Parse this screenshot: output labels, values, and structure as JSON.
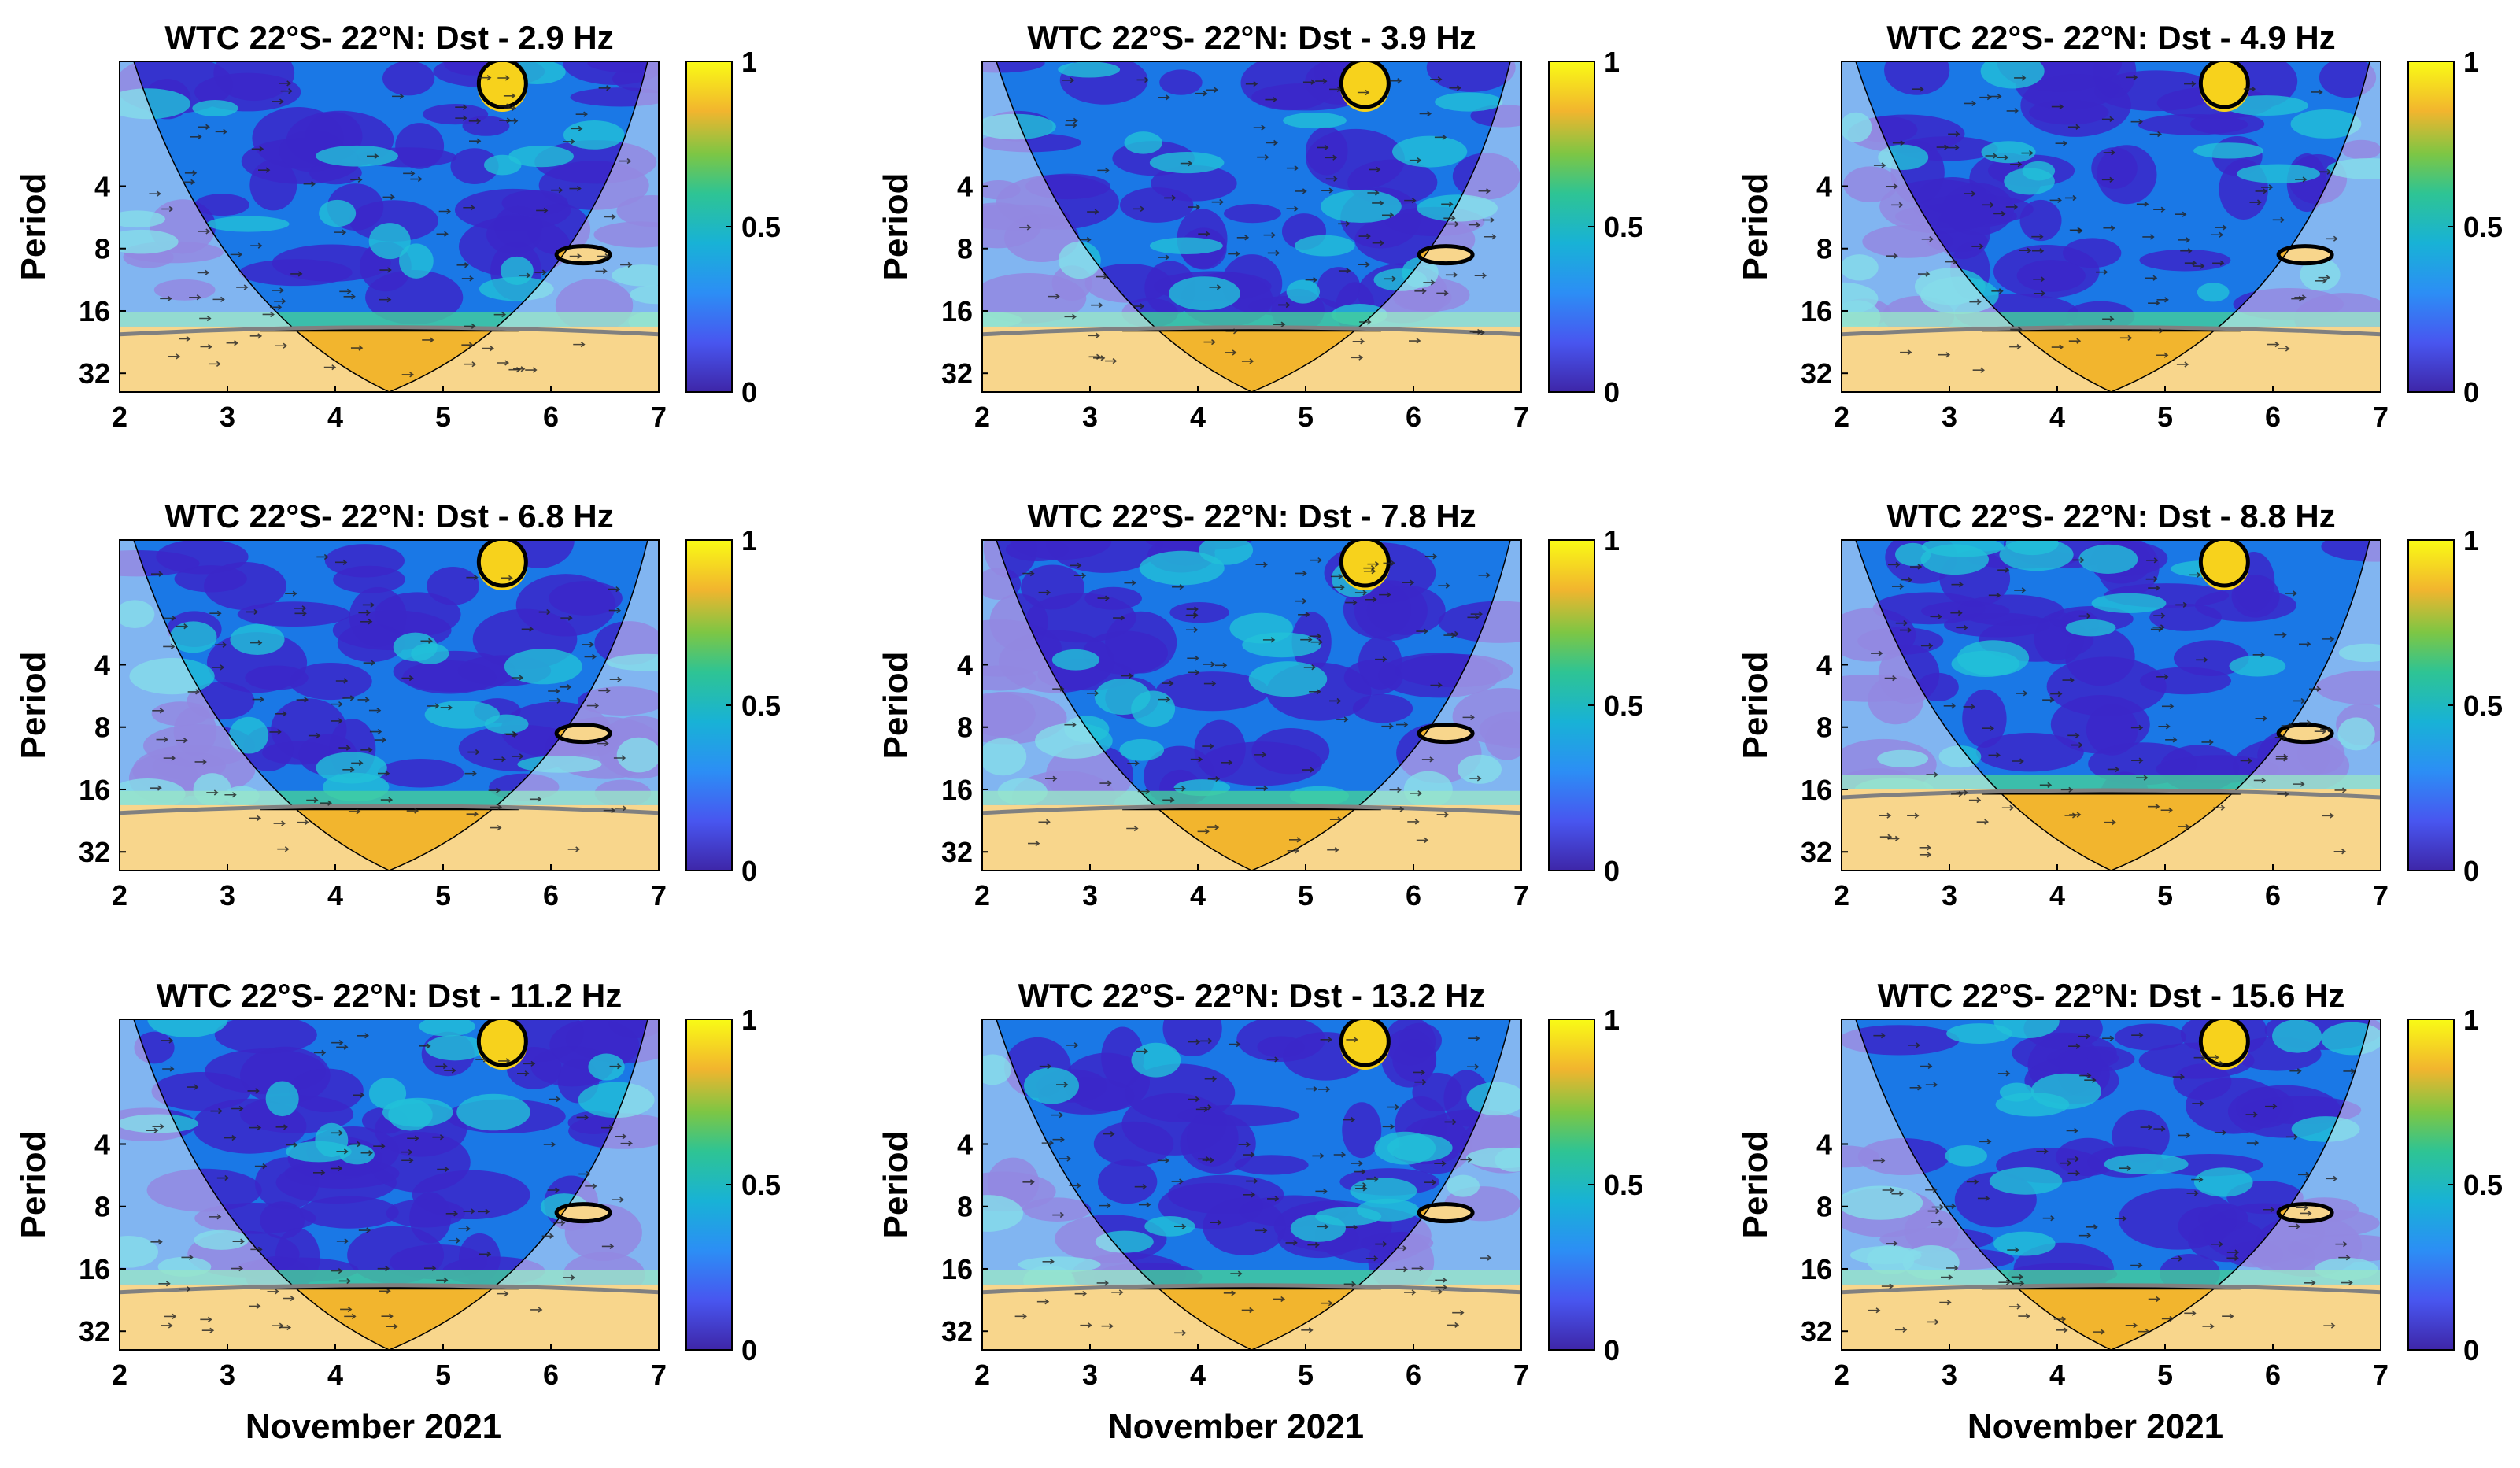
{
  "chart_data": [
    {
      "type": "heatmap",
      "title": "WTC 22°S- 22°N: Dst - 2.9 Hz",
      "ylabel": "Period",
      "xlabel": "",
      "x_ticks": [
        "2",
        "3",
        "4",
        "5",
        "6",
        "7"
      ],
      "y_ticks": [
        "4",
        "8",
        "16",
        "32"
      ],
      "xlim": [
        2,
        7
      ],
      "y_log2_lim": [
        0,
        5.3
      ],
      "colorbar": {
        "ticks": [
          "0",
          "0.5",
          "1"
        ],
        "range": [
          0,
          1
        ]
      }
    },
    {
      "type": "heatmap",
      "title": "WTC 22°S- 22°N: Dst - 3.9 Hz",
      "ylabel": "Period",
      "xlabel": "",
      "x_ticks": [
        "2",
        "3",
        "4",
        "5",
        "6",
        "7"
      ],
      "y_ticks": [
        "4",
        "8",
        "16",
        "32"
      ],
      "xlim": [
        2,
        7
      ],
      "y_log2_lim": [
        0,
        5.3
      ],
      "colorbar": {
        "ticks": [
          "0",
          "0.5",
          "1"
        ],
        "range": [
          0,
          1
        ]
      }
    },
    {
      "type": "heatmap",
      "title": "WTC 22°S- 22°N: Dst - 4.9 Hz",
      "ylabel": "Period",
      "xlabel": "",
      "x_ticks": [
        "2",
        "3",
        "4",
        "5",
        "6",
        "7"
      ],
      "y_ticks": [
        "4",
        "8",
        "16",
        "32"
      ],
      "xlim": [
        2,
        7
      ],
      "y_log2_lim": [
        0,
        5.3
      ],
      "colorbar": {
        "ticks": [
          "0",
          "0.5",
          "1"
        ],
        "range": [
          0,
          1
        ]
      }
    },
    {
      "type": "heatmap",
      "title": "WTC 22°S- 22°N: Dst - 6.8 Hz",
      "ylabel": "Period",
      "xlabel": "",
      "x_ticks": [
        "2",
        "3",
        "4",
        "5",
        "6",
        "7"
      ],
      "y_ticks": [
        "4",
        "8",
        "16",
        "32"
      ],
      "xlim": [
        2,
        7
      ],
      "y_log2_lim": [
        0,
        5.3
      ],
      "colorbar": {
        "ticks": [
          "0",
          "0.5",
          "1"
        ],
        "range": [
          0,
          1
        ]
      }
    },
    {
      "type": "heatmap",
      "title": "WTC 22°S- 22°N: Dst - 7.8 Hz",
      "ylabel": "Period",
      "xlabel": "",
      "x_ticks": [
        "2",
        "3",
        "4",
        "5",
        "6",
        "7"
      ],
      "y_ticks": [
        "4",
        "8",
        "16",
        "32"
      ],
      "xlim": [
        2,
        7
      ],
      "y_log2_lim": [
        0,
        5.3
      ],
      "colorbar": {
        "ticks": [
          "0",
          "0.5",
          "1"
        ],
        "range": [
          0,
          1
        ]
      }
    },
    {
      "type": "heatmap",
      "title": "WTC 22°S- 22°N: Dst - 8.8 Hz",
      "ylabel": "Period",
      "xlabel": "",
      "x_ticks": [
        "2",
        "3",
        "4",
        "5",
        "6",
        "7"
      ],
      "y_ticks": [
        "4",
        "8",
        "16",
        "32"
      ],
      "xlim": [
        2,
        7
      ],
      "y_log2_lim": [
        0,
        5.3
      ],
      "colorbar": {
        "ticks": [
          "0",
          "0.5",
          "1"
        ],
        "range": [
          0,
          1
        ]
      }
    },
    {
      "type": "heatmap",
      "title": "WTC 22°S- 22°N: Dst - 11.2 Hz",
      "ylabel": "Period",
      "xlabel": "November 2021",
      "x_ticks": [
        "2",
        "3",
        "4",
        "5",
        "6",
        "7"
      ],
      "y_ticks": [
        "4",
        "8",
        "16",
        "32"
      ],
      "xlim": [
        2,
        7
      ],
      "y_log2_lim": [
        0,
        5.3
      ],
      "colorbar": {
        "ticks": [
          "0",
          "0.5",
          "1"
        ],
        "range": [
          0,
          1
        ]
      }
    },
    {
      "type": "heatmap",
      "title": "WTC 22°S- 22°N: Dst - 13.2 Hz",
      "ylabel": "Period",
      "xlabel": "November 2021",
      "x_ticks": [
        "2",
        "3",
        "4",
        "5",
        "6",
        "7"
      ],
      "y_ticks": [
        "4",
        "8",
        "16",
        "32"
      ],
      "xlim": [
        2,
        7
      ],
      "y_log2_lim": [
        0,
        5.3
      ],
      "colorbar": {
        "ticks": [
          "0",
          "0.5",
          "1"
        ],
        "range": [
          0,
          1
        ]
      }
    },
    {
      "type": "heatmap",
      "title": "WTC 22°S- 22°N: Dst - 15.6 Hz",
      "ylabel": "Period",
      "xlabel": "November 2021",
      "x_ticks": [
        "2",
        "3",
        "4",
        "5",
        "6",
        "7"
      ],
      "y_ticks": [
        "4",
        "8",
        "16",
        "32"
      ],
      "xlim": [
        2,
        7
      ],
      "y_log2_lim": [
        0,
        5.3
      ],
      "colorbar": {
        "ticks": [
          "0",
          "0.5",
          "1"
        ],
        "range": [
          0,
          1
        ]
      }
    }
  ],
  "colors": {
    "background": "#1fb8c9",
    "low": "#4a2fd6",
    "mid": "#1f8fe0",
    "high": "#ffd21f",
    "band": "#f5c46a",
    "coi_overlay": "#ffffff",
    "contour": "#000000",
    "coi_contour": "#7a7a7a"
  }
}
